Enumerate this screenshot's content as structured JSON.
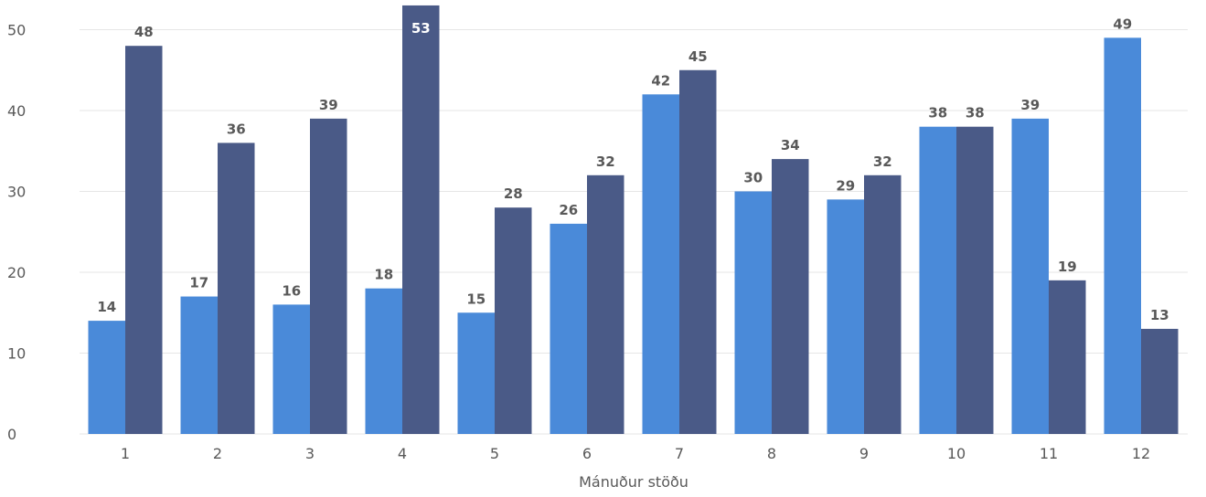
{
  "chart_data": {
    "type": "bar",
    "title": "",
    "xlabel": "Mánuður stöðu",
    "ylabel": "",
    "categories": [
      "1",
      "2",
      "3",
      "4",
      "5",
      "6",
      "7",
      "8",
      "9",
      "10",
      "11",
      "12"
    ],
    "series": [
      {
        "color": "#4a8ad9",
        "values": [
          14,
          17,
          16,
          18,
          15,
          26,
          42,
          30,
          29,
          38,
          39,
          49
        ]
      },
      {
        "color": "#4a5a87",
        "values": [
          48,
          36,
          39,
          53,
          28,
          32,
          45,
          34,
          32,
          38,
          19,
          13
        ]
      }
    ],
    "y_ticks": [
      "0",
      "10",
      "20",
      "30",
      "40",
      "50"
    ],
    "ylim": [
      0,
      54
    ],
    "grid": true,
    "legend": "none"
  }
}
